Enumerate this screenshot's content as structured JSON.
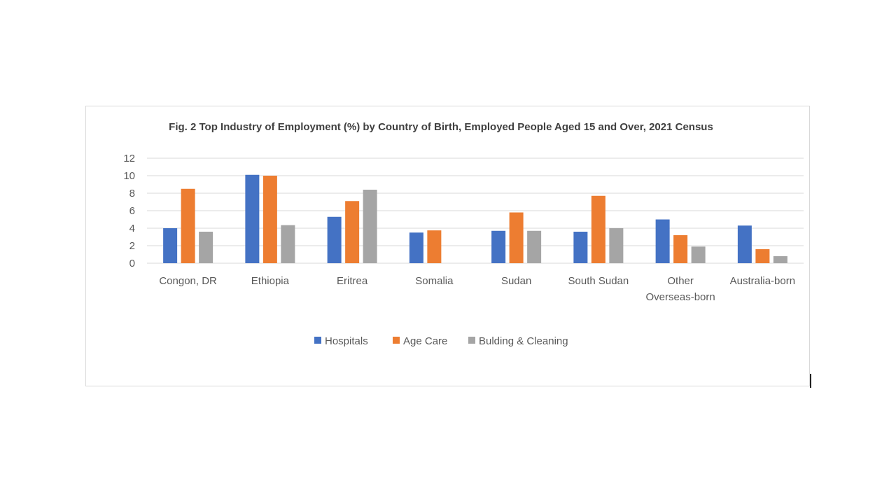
{
  "chart_data": {
    "type": "bar",
    "title": "Fig. 2 Top Industry of Employment (%) by Country of Birth, Employed People  Aged 15 and Over, 2021 Census",
    "categories": [
      "Congon, DR",
      "Ethiopia",
      "Eritrea",
      "Somalia",
      "Sudan",
      "South Sudan",
      "Other Overseas-born",
      "Australia-born"
    ],
    "series": [
      {
        "name": "Hospitals",
        "color": "#4472c4",
        "values": [
          4.0,
          10.1,
          5.3,
          3.5,
          3.7,
          3.6,
          5.0,
          4.3
        ]
      },
      {
        "name": "Age Care",
        "color": "#ed7d31",
        "values": [
          8.5,
          10.0,
          7.1,
          3.75,
          5.8,
          7.7,
          3.2,
          1.6
        ]
      },
      {
        "name": "Bulding & Cleaning",
        "color": "#a5a5a5",
        "values": [
          3.6,
          4.35,
          8.4,
          0,
          3.7,
          4.0,
          1.9,
          0.8
        ]
      }
    ],
    "ylim": [
      0,
      12
    ],
    "yticks": [
      0,
      2,
      4,
      6,
      8,
      10,
      12
    ],
    "grid": true,
    "legend": "bottom",
    "xlabel": "",
    "ylabel": ""
  }
}
